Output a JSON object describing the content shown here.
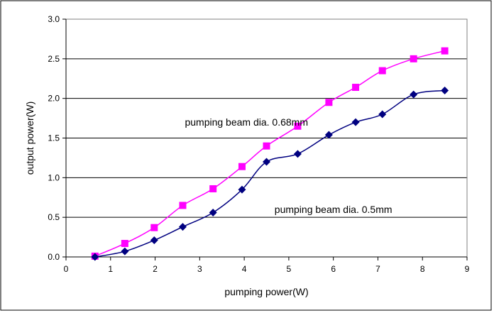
{
  "chart_data": {
    "type": "line",
    "title": "",
    "xlabel": "pumping power(W)",
    "ylabel": "output power(W)",
    "xlim": [
      0,
      9
    ],
    "ylim": [
      0,
      3.0
    ],
    "x_ticks": [
      "0",
      "1",
      "2",
      "3",
      "4",
      "5",
      "6",
      "7",
      "8",
      "9"
    ],
    "y_ticks": [
      "0.0",
      "0.5",
      "1.0",
      "1.5",
      "2.0",
      "2.5",
      "3.0"
    ],
    "grid": "horizontal",
    "series": [
      {
        "name": "pumping beam dia. 0.68mm",
        "color": "#ff00ff",
        "marker": "square",
        "x": [
          0.65,
          1.32,
          1.98,
          2.62,
          3.3,
          3.95,
          4.5,
          5.2,
          5.9,
          6.5,
          7.1,
          7.8,
          8.5
        ],
        "y": [
          0.01,
          0.17,
          0.37,
          0.65,
          0.86,
          1.14,
          1.4,
          1.65,
          1.95,
          2.14,
          2.35,
          2.5,
          2.6
        ]
      },
      {
        "name": "pumping beam dia. 0.5mm",
        "color": "#000080",
        "marker": "diamond",
        "x": [
          0.65,
          1.32,
          1.98,
          2.62,
          3.3,
          3.95,
          4.5,
          5.2,
          5.9,
          6.5,
          7.1,
          7.8,
          8.5
        ],
        "y": [
          0.0,
          0.07,
          0.21,
          0.38,
          0.56,
          0.85,
          1.2,
          1.3,
          1.54,
          1.7,
          1.8,
          2.05,
          2.1
        ]
      }
    ],
    "annotations": [
      {
        "text": "pumping beam dia. 0.68mm",
        "x": 4.05,
        "y": 1.7
      },
      {
        "text": "pumping beam dia. 0.5mm",
        "x": 6.0,
        "y": 0.6
      }
    ]
  }
}
